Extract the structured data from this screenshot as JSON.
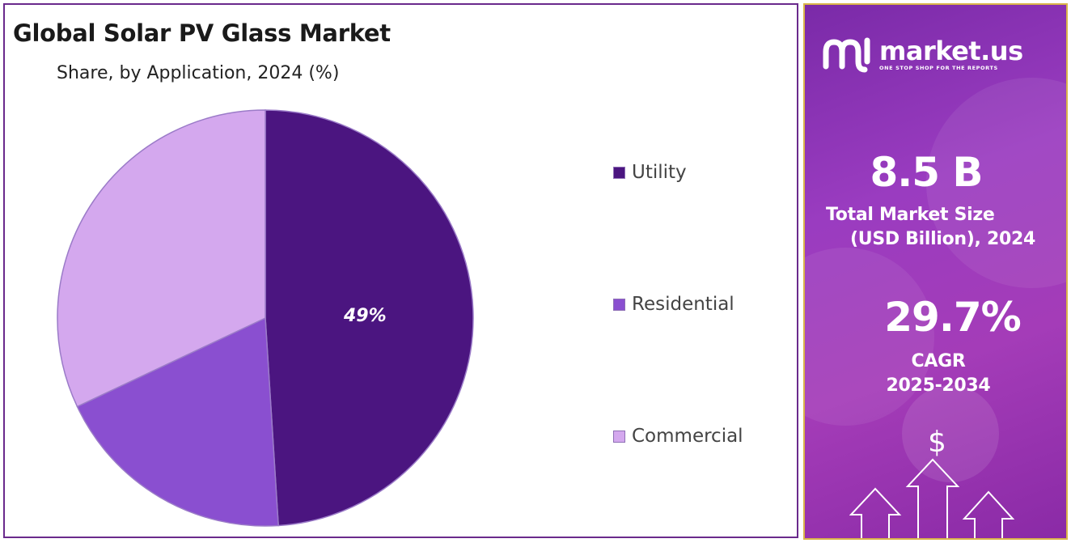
{
  "title": "Global Solar PV Glass Market",
  "subtitle": "Share, by Application, 2024 (%)",
  "chart_data": {
    "type": "pie",
    "title": "Global Solar PV Glass Market",
    "subtitle": "Share, by Application, 2024 (%)",
    "categories": [
      "Utility",
      "Residential",
      "Commercial"
    ],
    "values": [
      49,
      19,
      32
    ],
    "labels": [
      "49%",
      "",
      ""
    ],
    "colors": [
      "#4b1580",
      "#8a4fd0",
      "#d4a8ee"
    ],
    "legend_position": "right"
  },
  "brand": {
    "name": "market.us",
    "tagline": "ONE STOP SHOP FOR THE REPORTS",
    "logo_icon": "market-us-logo-icon"
  },
  "stats": {
    "market_size_value": "8.5 B",
    "market_size_label_1": "Total Market Size",
    "market_size_label_2": "(USD Billion), 2024",
    "cagr_value": "29.7%",
    "cagr_label_1": "CAGR",
    "cagr_label_2": "2025-2034"
  },
  "icons": {
    "dollar": "$",
    "dollar_name": "dollar-sign-icon",
    "arrows_name": "growth-arrows-icon"
  },
  "colors": {
    "panel_border": "#6a2a8c",
    "sidebar_border": "#d9b44a",
    "sidebar_bg": "#9a3cc0"
  }
}
